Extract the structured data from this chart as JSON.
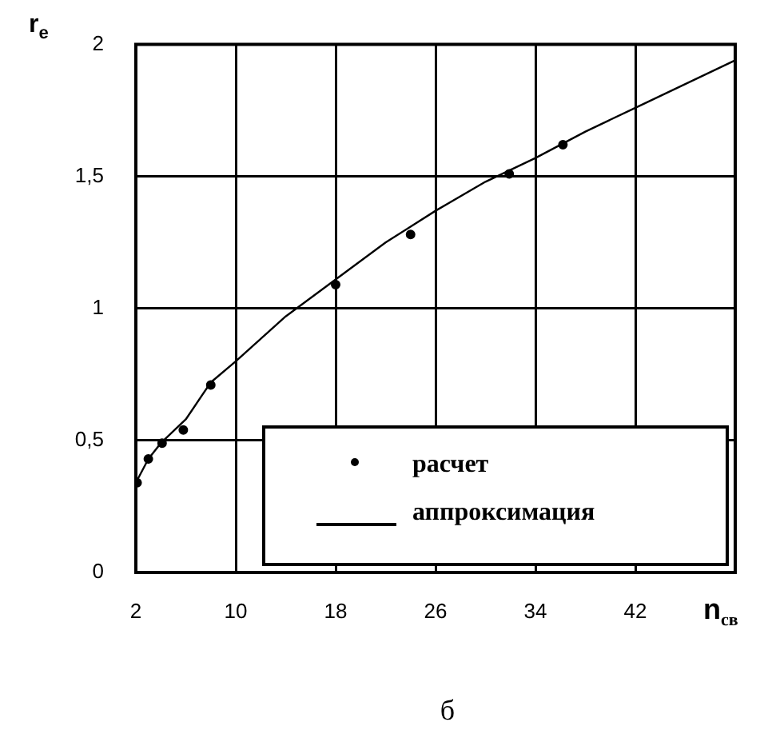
{
  "chart_data": {
    "type": "scatter",
    "xlabel": "n$_{св}$",
    "ylabel": "r$_{e}$",
    "annotations": [
      "б"
    ],
    "xlim": [
      2,
      50
    ],
    "xticks": [
      2,
      10,
      18,
      26,
      34,
      42
    ],
    "ylim": [
      0,
      2
    ],
    "yticks": [
      0,
      {
        "value": 0.5,
        "label": "0,5"
      },
      1,
      {
        "value": 1.5,
        "label": "1,5"
      },
      2
    ],
    "grid": true,
    "legend": "bottom right",
    "series": [
      {
        "name": "расчет",
        "type": "scatter",
        "color": "#000000",
        "marker": "circle",
        "x": [
          2.1,
          3,
          4.1,
          5.8,
          8,
          18,
          24,
          31.9,
          36.2
        ],
        "values": [
          0.34,
          0.43,
          0.49,
          0.54,
          0.71,
          1.09,
          1.28,
          1.51,
          1.62
        ]
      },
      {
        "name": "аппроксимация",
        "type": "line",
        "color": "#000000",
        "marker": "none",
        "line_style": "solid",
        "x": [
          2,
          3,
          4,
          6,
          8,
          10,
          14,
          18,
          22,
          26,
          30,
          34,
          38,
          42,
          46,
          50
        ],
        "values": [
          0.34,
          0.43,
          0.49,
          0.58,
          0.72,
          0.8,
          0.97,
          1.11,
          1.25,
          1.37,
          1.48,
          1.57,
          1.67,
          1.76,
          1.85,
          1.94
        ]
      }
    ]
  }
}
